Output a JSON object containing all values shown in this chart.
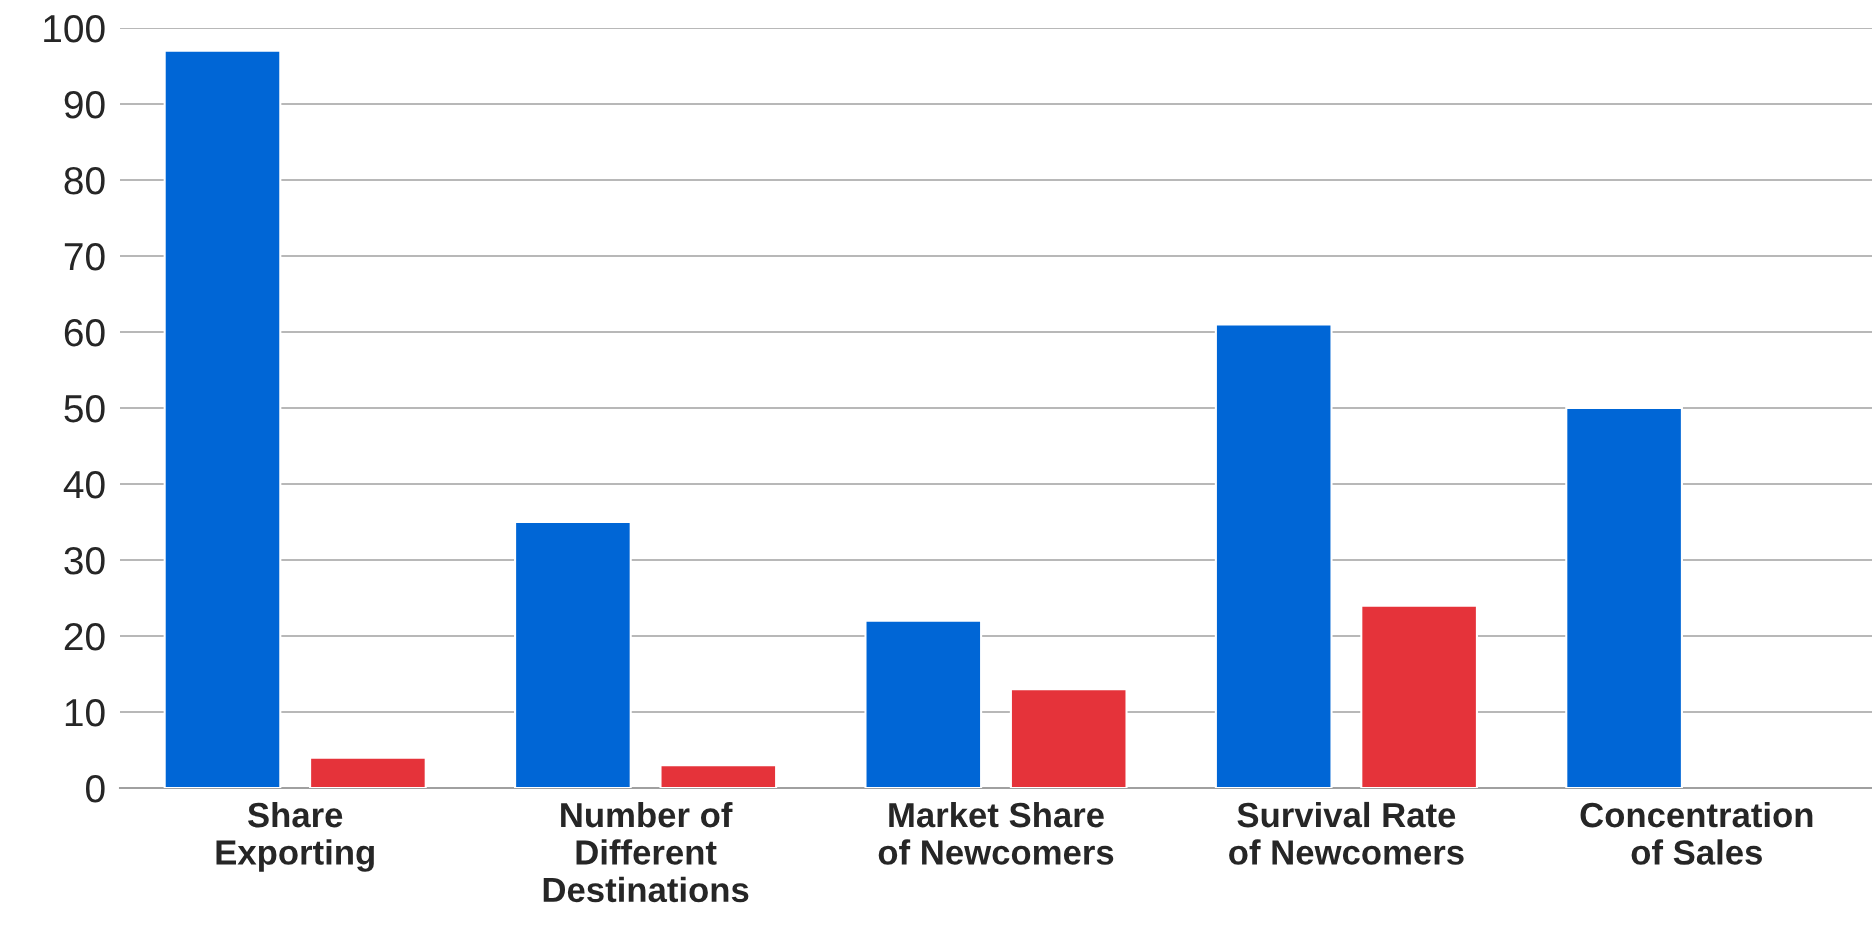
{
  "chart_data": {
    "type": "bar",
    "categories": [
      "Share\nExporting",
      "Number of\nDifferent\nDestinations",
      "Market Share\nof Newcomers",
      "Survival Rate\nof Newcomers",
      "Concentration\nof Sales"
    ],
    "series": [
      {
        "color": "#0066d6",
        "values": [
          97,
          35,
          22,
          61,
          50
        ]
      },
      {
        "color": "#e5333a",
        "values": [
          4,
          3,
          13,
          24,
          null
        ]
      }
    ],
    "ylim": [
      0,
      100
    ],
    "yticks": [
      0,
      10,
      20,
      30,
      40,
      50,
      60,
      70,
      80,
      90,
      100
    ],
    "grid": "y"
  }
}
